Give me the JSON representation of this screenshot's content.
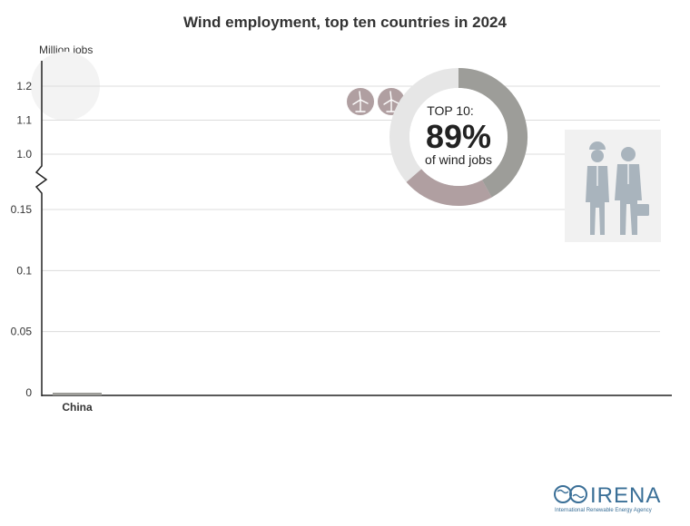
{
  "chart_data": {
    "type": "bar",
    "title": "Wind employment, top ten countries in 2024",
    "ylabel": "Million jobs",
    "y_axis_break": true,
    "lower_ticks": [
      "0",
      "0.05",
      "0.1",
      "0.15"
    ],
    "upper_ticks": [
      "1.0",
      "1.1",
      "1.2"
    ],
    "lower_ylim": [
      0,
      0.15
    ],
    "upper_ylim": [
      1.0,
      1.2
    ],
    "grid": true,
    "categories": [
      "China"
    ],
    "values": [
      0
    ]
  },
  "donut": {
    "line1": "TOP 10:",
    "percent": "89%",
    "line2": "of wind jobs",
    "top_share": 0.89,
    "colors": {
      "track": "#e6e6e6",
      "segment_dark": "#9d9d99",
      "segment_mauve": "#b09fa1"
    }
  },
  "icons": {
    "turbines": [
      "wind-turbine-icon",
      "wind-turbine-icon"
    ],
    "workers": "workers-icon"
  },
  "logo": {
    "name": "IRENA",
    "tagline": "International Renewable Energy Agency",
    "color": "#3a6f97"
  },
  "colors": {
    "grid": "#dcdcdc",
    "axis": "#222222",
    "text": "#333333"
  }
}
